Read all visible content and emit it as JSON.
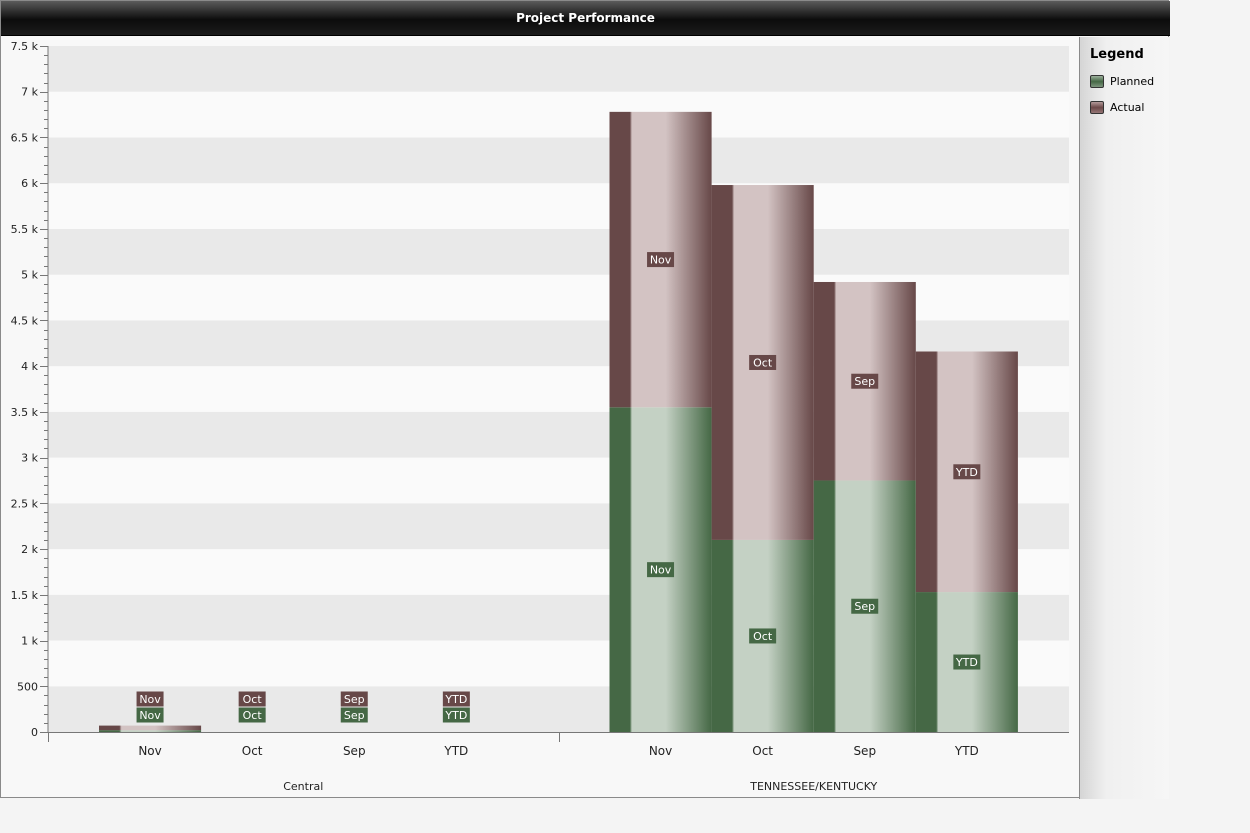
{
  "window": {
    "title": "Project Performance"
  },
  "legend": {
    "title": "Legend",
    "items": [
      {
        "name": "Planned",
        "color": "#456845"
      },
      {
        "name": "Actual",
        "color": "#6b4848"
      }
    ]
  },
  "colors": {
    "planned_dark": "#456845",
    "planned_light": "#c4d1c4",
    "actual_dark": "#674848",
    "actual_light": "#d3c3c3",
    "band": "#e9e9e9",
    "background": "#fafafa"
  },
  "chart_data": {
    "type": "bar",
    "stacked": true,
    "ylim": [
      0,
      7500
    ],
    "yticks": [
      {
        "value": 0,
        "label": "0"
      },
      {
        "value": 500,
        "label": "500"
      },
      {
        "value": 1000,
        "label": "1 k"
      },
      {
        "value": 1500,
        "label": "1.5 k"
      },
      {
        "value": 2000,
        "label": "2 k"
      },
      {
        "value": 2500,
        "label": "2.5 k"
      },
      {
        "value": 3000,
        "label": "3 k"
      },
      {
        "value": 3500,
        "label": "3.5 k"
      },
      {
        "value": 4000,
        "label": "4 k"
      },
      {
        "value": 4500,
        "label": "4.5 k"
      },
      {
        "value": 5000,
        "label": "5 k"
      },
      {
        "value": 5500,
        "label": "5.5 k"
      },
      {
        "value": 6000,
        "label": "6 k"
      },
      {
        "value": 6500,
        "label": "6.5 k"
      },
      {
        "value": 7000,
        "label": "7 k"
      },
      {
        "value": 7500,
        "label": "7.5 k"
      }
    ],
    "grid": true,
    "legend_position": "right",
    "groups": [
      {
        "name": "Central",
        "categories": [
          "Nov",
          "Oct",
          "Sep",
          "YTD"
        ],
        "series": [
          {
            "name": "Planned",
            "values": [
              20,
              0,
              0,
              0
            ]
          },
          {
            "name": "Actual",
            "values": [
              50,
              0,
              0,
              0
            ]
          }
        ]
      },
      {
        "name": "TENNESSEE/KENTUCKY",
        "categories": [
          "Nov",
          "Oct",
          "Sep",
          "YTD"
        ],
        "series": [
          {
            "name": "Planned",
            "values": [
              3550,
              2100,
              2750,
              1530
            ]
          },
          {
            "name": "Actual",
            "values": [
              3230,
              3880,
              2170,
              2630
            ]
          }
        ]
      }
    ]
  }
}
